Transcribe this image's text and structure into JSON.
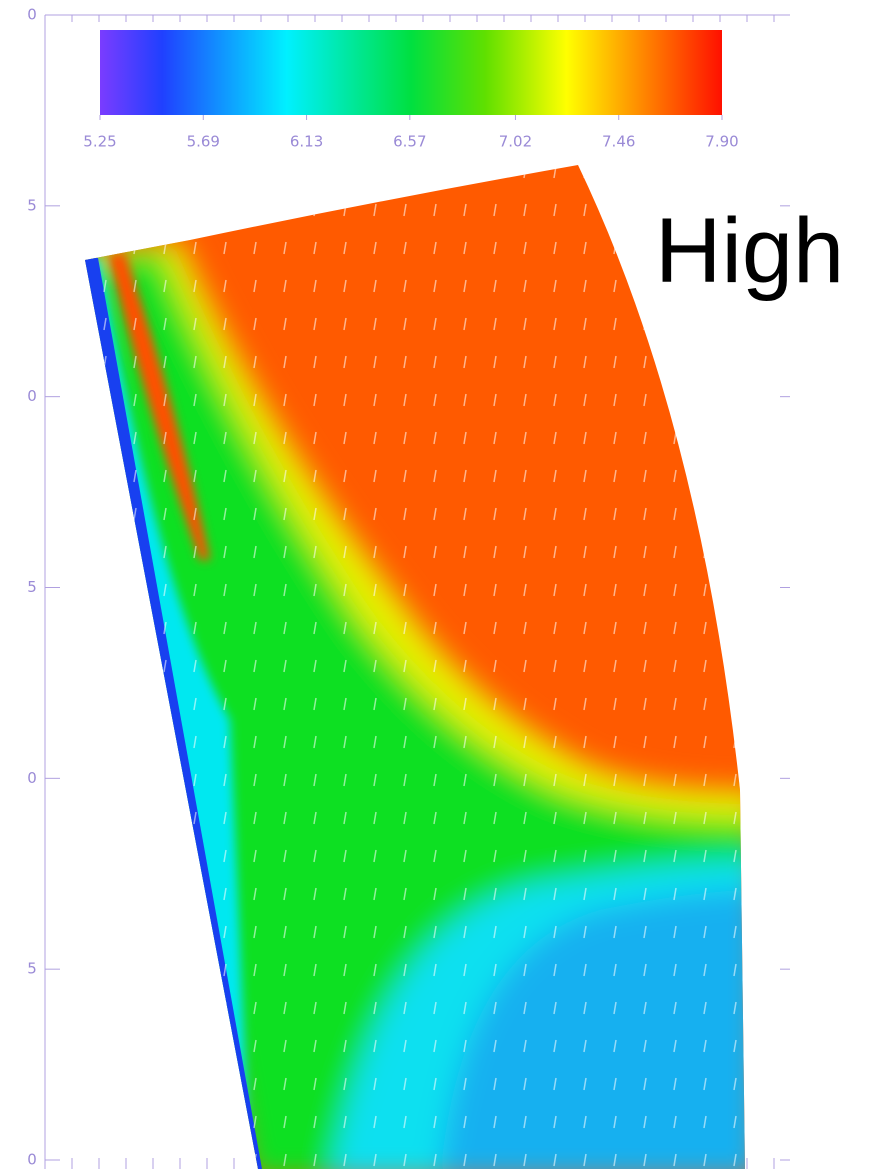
{
  "chart_data": {
    "type": "field",
    "annotation": "High",
    "colorbar": {
      "lim": [
        5.25,
        7.9
      ],
      "ticks": [
        5.25,
        5.69,
        6.13,
        6.57,
        7.02,
        7.46,
        {
          "value": 7.9,
          "label": "7.90"
        }
      ]
    },
    "ytick_labels": [
      "0",
      "5",
      "0",
      "5",
      "0",
      "5",
      "0"
    ]
  }
}
